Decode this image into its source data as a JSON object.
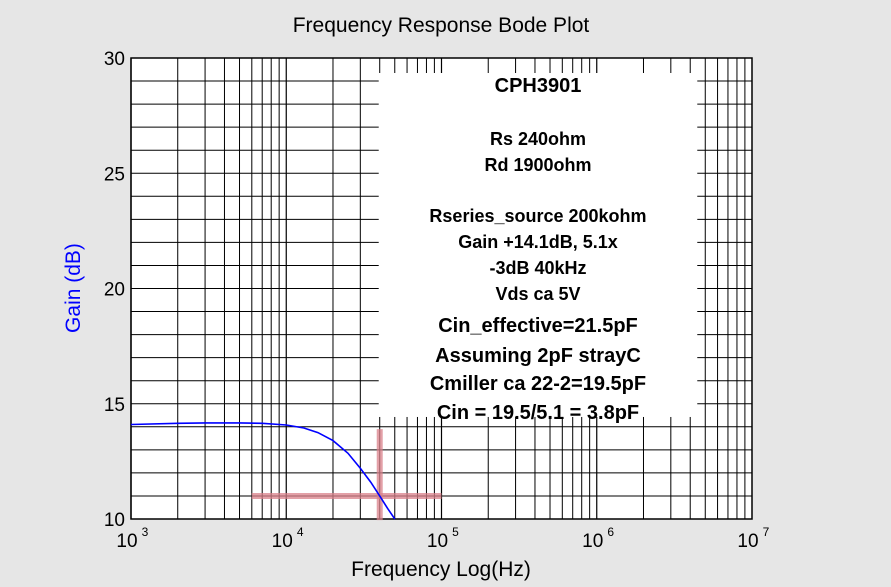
{
  "chart_data": {
    "type": "line",
    "title": "Frequency Response Bode Plot",
    "xlabel": "Frequency Log(Hz)",
    "ylabel": "Gain (dB)",
    "x_scale": "log",
    "xlim": [
      1000,
      10000000
    ],
    "ylim": [
      10,
      30
    ],
    "grid": true,
    "x_ticks": [
      {
        "value": 1000,
        "base": "10",
        "exp": "3"
      },
      {
        "value": 10000,
        "base": "10",
        "exp": "4"
      },
      {
        "value": 100000,
        "base": "10",
        "exp": "5"
      },
      {
        "value": 1000000,
        "base": "10",
        "exp": "6"
      },
      {
        "value": 10000000,
        "base": "10",
        "exp": "7"
      }
    ],
    "y_ticks": [
      {
        "value": 10,
        "label": "10"
      },
      {
        "value": 15,
        "label": "15"
      },
      {
        "value": 20,
        "label": "20"
      },
      {
        "value": 25,
        "label": "25"
      },
      {
        "value": 30,
        "label": "30"
      }
    ],
    "series": [
      {
        "color": "#0000ff",
        "x": [
          1000,
          2000,
          3000,
          5000,
          7000,
          10000,
          13000,
          16000,
          20000,
          25000,
          30000,
          35000,
          40000,
          45000,
          50000
        ],
        "y": [
          14.1,
          14.15,
          14.17,
          14.17,
          14.15,
          14.08,
          13.95,
          13.75,
          13.4,
          12.85,
          12.2,
          11.6,
          11.0,
          10.45,
          10.0
        ]
      }
    ],
    "markers": {
      "color": "#d9808a",
      "horizontal": {
        "y": 11.0,
        "x_from": 6000,
        "x_to": 100000
      },
      "vertical": {
        "x": 40000,
        "y_from": 9.95,
        "y_to": 13.9
      }
    },
    "annotation": {
      "lines": [
        "CPH3901",
        "",
        "Rs 240ohm",
        "Rd 1900ohm",
        "",
        "Rseries_source 200kohm",
        "Gain +14.1dB, 5.1x",
        "-3dB 40kHz",
        "Vds ca 5V",
        "Cin_effective=21.5pF",
        "Assuming 2pF strayC",
        "Cmiller ca 22-2=19.5pF",
        "Cin = 19.5/5.1 = 3.8pF"
      ]
    }
  },
  "colors": {
    "background": "#e6e6e6",
    "plot_background": "#ffffff",
    "grid": "#000000",
    "title": "#000000",
    "ylabel": "#0000ff"
  }
}
